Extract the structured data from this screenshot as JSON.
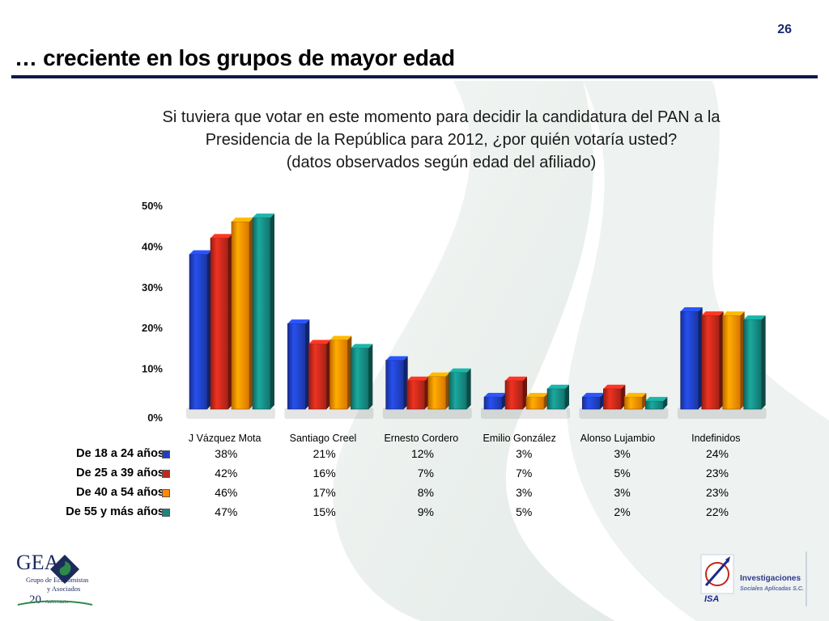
{
  "slide": {
    "number": "26",
    "title": "… creciente en los grupos de mayor edad",
    "question_lines": [
      "Si tuviera que votar en este momento para decidir la candidatura del PAN a la",
      "Presidencia de la República para 2012, ¿por quién votaría usted?",
      "(datos observados según edad del afiliado)"
    ]
  },
  "chart_data": {
    "type": "bar",
    "categories": [
      "J Vázquez Mota",
      "Santiago Creel",
      "Ernesto Cordero",
      "Emilio González",
      "Alonso Lujambio",
      "Indefinidos"
    ],
    "series": [
      {
        "name": "De 18 a 24 años",
        "values": [
          38,
          21,
          12,
          3,
          3,
          24
        ],
        "labels": [
          "38%",
          "21%",
          "12%",
          "3%",
          "3%",
          "24%"
        ],
        "color": "#1f3fbf"
      },
      {
        "name": "De 25 a 39 años",
        "values": [
          42,
          16,
          7,
          7,
          5,
          23
        ],
        "labels": [
          "42%",
          "16%",
          "7%",
          "7%",
          "5%",
          "23%"
        ],
        "color": "#c0281a"
      },
      {
        "name": "De 40 a 54 años",
        "values": [
          46,
          17,
          8,
          3,
          3,
          23
        ],
        "labels": [
          "46%",
          "17%",
          "8%",
          "3%",
          "3%",
          "23%"
        ],
        "color": "#ff8a00"
      },
      {
        "name": "De 55 y más años",
        "values": [
          47,
          15,
          9,
          5,
          2,
          22
        ],
        "labels": [
          "47%",
          "15%",
          "9%",
          "5%",
          "2%",
          "22%"
        ],
        "color": "#15877f"
      }
    ],
    "y_ticks": [
      "0%",
      "10%",
      "20%",
      "30%",
      "40%",
      "50%"
    ],
    "ylim": [
      0,
      50
    ],
    "grid": false,
    "legend": "data-table",
    "style": "3d-bars"
  },
  "logos": {
    "left": {
      "name": "GEA",
      "lines": [
        "Grupo de Economistas",
        "y Asociados"
      ],
      "anniversary": "20",
      "anniversary_word": "Aniversario"
    },
    "right": {
      "name": "ISA",
      "lines": [
        "Investigaciones",
        "Sociales Aplicadas S.C."
      ]
    }
  }
}
